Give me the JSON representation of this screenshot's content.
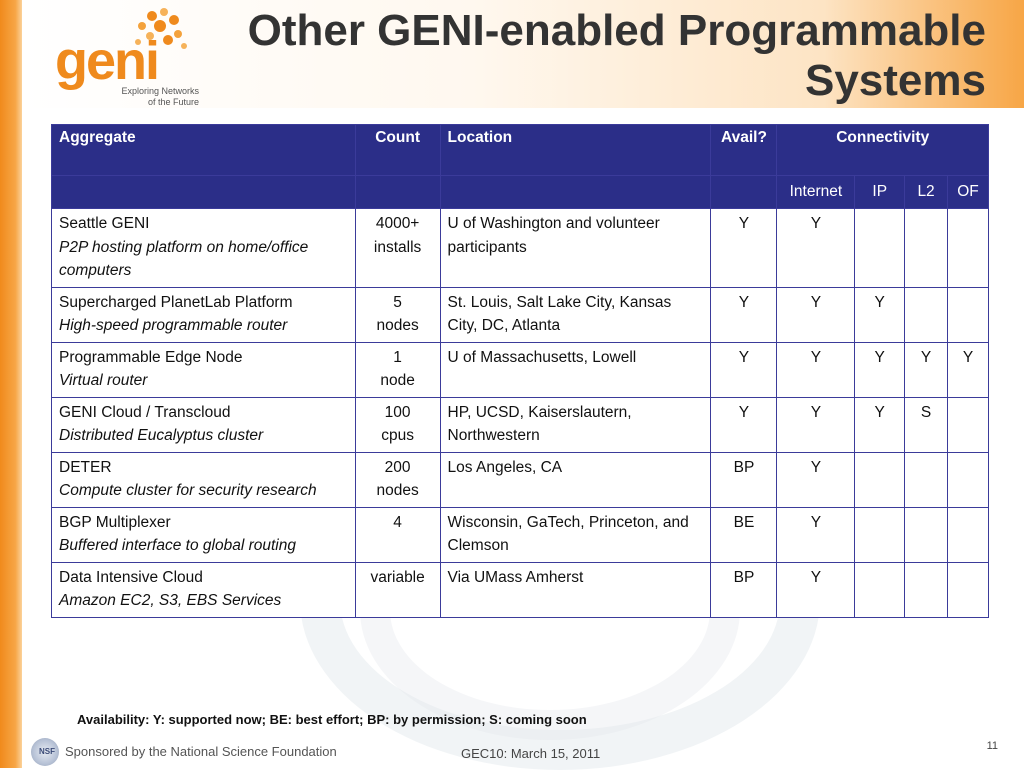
{
  "slide": {
    "title_line1": "Other GENI-enabled Programmable",
    "title_line2": "Systems",
    "logo_word": "geni",
    "logo_tag_line1": "Exploring Networks",
    "logo_tag_line2": "of the Future"
  },
  "table": {
    "headers": {
      "aggregate": "Aggregate",
      "count": "Count",
      "location": "Location",
      "avail": "Avail?",
      "connectivity": "Connectivity"
    },
    "subheaders": [
      "Internet",
      "IP",
      "L2",
      "OF"
    ],
    "rows": [
      {
        "name": "Seattle GENI",
        "desc": "P2P hosting platform on home/office computers",
        "count1": "4000+",
        "count2": "installs",
        "location": "U of Washington and volunteer participants",
        "avail": "Y",
        "internet": "Y",
        "ip": "",
        "l2": "",
        "of": ""
      },
      {
        "name": "Supercharged PlanetLab Platform",
        "desc": "High-speed programmable router",
        "count1": "5",
        "count2": "nodes",
        "location": "St. Louis, Salt Lake City, Kansas City, DC, Atlanta",
        "avail": "Y",
        "internet": "Y",
        "ip": "Y",
        "l2": "",
        "of": ""
      },
      {
        "name": "Programmable Edge Node",
        "desc": "Virtual router",
        "count1": "1",
        "count2": "node",
        "location": "U of Massachusetts, Lowell",
        "avail": "Y",
        "internet": "Y",
        "ip": "Y",
        "l2": "Y",
        "of": "Y"
      },
      {
        "name": "GENI Cloud / Transcloud",
        "desc": "Distributed Eucalyptus cluster",
        "count1": "100",
        "count2": "cpus",
        "location": "HP, UCSD, Kaiserslautern, Northwestern",
        "avail": "Y",
        "internet": "Y",
        "ip": "Y",
        "l2": "S",
        "of": ""
      },
      {
        "name": "DETER",
        "desc": "Compute cluster for security research",
        "count1": "200",
        "count2": "nodes",
        "location": "Los Angeles, CA",
        "avail": "BP",
        "internet": "Y",
        "ip": "",
        "l2": "",
        "of": ""
      },
      {
        "name": "BGP Multiplexer",
        "desc": "Buffered interface to global routing",
        "count1": "4",
        "count2": "",
        "location": "Wisconsin, GaTech, Princeton, and Clemson",
        "avail": "BE",
        "internet": "Y",
        "ip": "",
        "l2": "",
        "of": ""
      },
      {
        "name": "Data Intensive Cloud",
        "desc": "Amazon EC2, S3, EBS Services",
        "count1": "variable",
        "count2": "",
        "location": "Via UMass Amherst",
        "avail": "BP",
        "internet": "Y",
        "ip": "",
        "l2": "",
        "of": ""
      }
    ]
  },
  "footer": {
    "availability_note": "Availability: Y: supported now; BE: best effort; BP: by permission; S: coming soon",
    "nsf_logo_text": "NSF",
    "sponsor": "Sponsored by the National Science Foundation",
    "event": "GEC10: March 15, 2011",
    "page_number": "11"
  }
}
